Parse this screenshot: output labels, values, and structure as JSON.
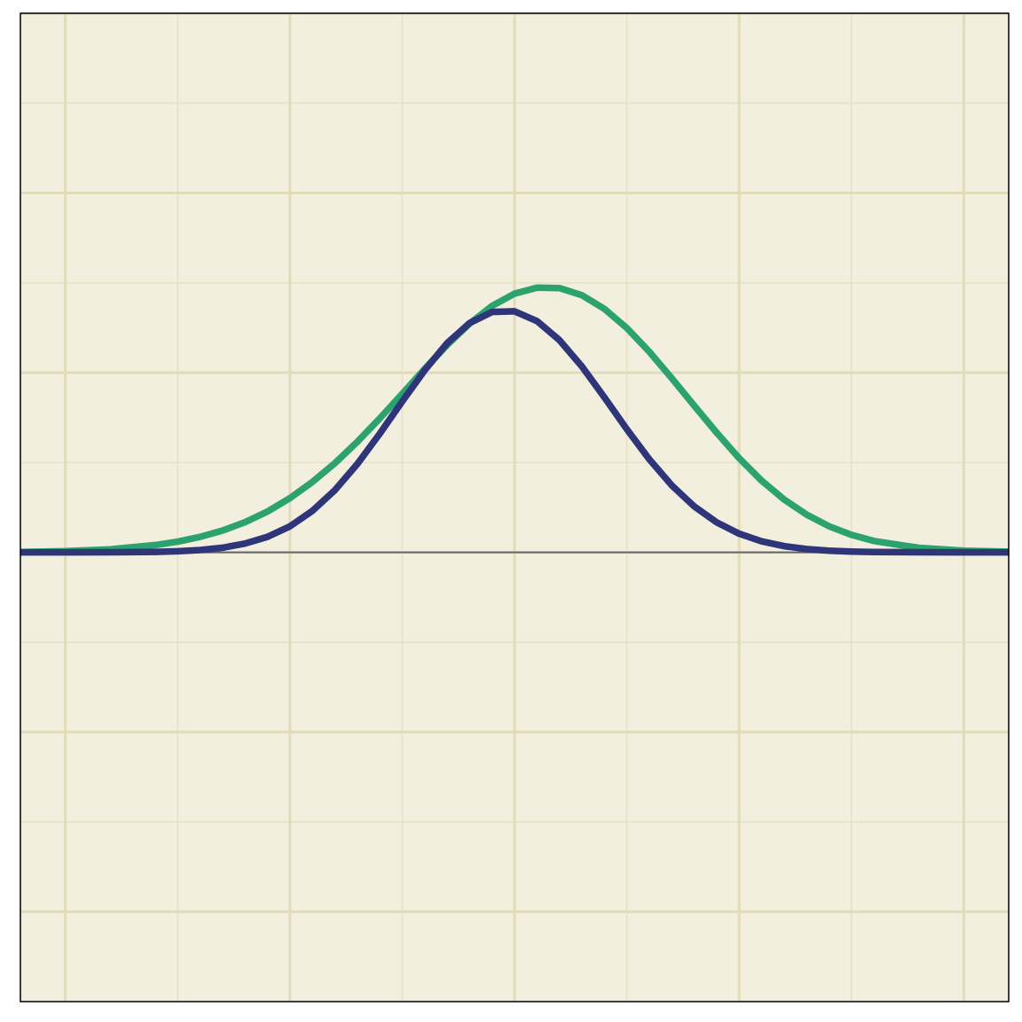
{
  "chart_data": {
    "type": "line",
    "title": "",
    "xlabel": "",
    "ylabel": "",
    "xlim": [
      -4.4,
      4.4
    ],
    "ylim": [
      -0.5,
      0.6
    ],
    "grid": true,
    "legend": "none",
    "x_major_ticks": [
      -4,
      -2,
      0,
      2,
      4
    ],
    "x_minor_ticks": [
      -3,
      -1,
      1,
      3
    ],
    "y_major_ticks": [
      -0.4,
      -0.2,
      0,
      0.2,
      0.4,
      0.6
    ],
    "y_minor_ticks": [
      -0.3,
      -0.1,
      0.1,
      0.3,
      0.5
    ],
    "baseline_y": 0,
    "colors": {
      "plot_background": "#f3efde",
      "grid_major": "#e2dbb9",
      "grid_minor": "#e7e1c6",
      "frame": "#000000",
      "baseline": "#666666"
    },
    "series": [
      {
        "color": "#2ca36f",
        "x": [
          -4.4,
          -4.0,
          -3.6,
          -3.2,
          -3.0,
          -2.8,
          -2.6,
          -2.4,
          -2.2,
          -2.0,
          -1.8,
          -1.6,
          -1.4,
          -1.2,
          -1.0,
          -0.8,
          -0.6,
          -0.4,
          -0.2,
          0.0,
          0.2,
          0.4,
          0.6,
          0.8,
          1.0,
          1.2,
          1.4,
          1.6,
          1.8,
          2.0,
          2.2,
          2.4,
          2.6,
          2.8,
          3.0,
          3.2,
          3.6,
          4.0,
          4.4
        ],
        "y": [
          0.0004,
          0.0013,
          0.0034,
          0.0081,
          0.0119,
          0.0172,
          0.0243,
          0.0336,
          0.0455,
          0.0604,
          0.0783,
          0.0993,
          0.1231,
          0.1491,
          0.1765,
          0.2042,
          0.2308,
          0.2547,
          0.2743,
          0.288,
          0.2947,
          0.2942,
          0.2862,
          0.271,
          0.2497,
          0.2234,
          0.1939,
          0.1633,
          0.1331,
          0.1048,
          0.0798,
          0.0589,
          0.0421,
          0.0291,
          0.0195,
          0.0127,
          0.0051,
          0.0019,
          0.0007
        ]
      },
      {
        "color": "#2e3578",
        "x": [
          -4.4,
          -4.0,
          -3.6,
          -3.2,
          -3.0,
          -2.8,
          -2.6,
          -2.4,
          -2.2,
          -2.0,
          -1.8,
          -1.6,
          -1.4,
          -1.2,
          -1.0,
          -0.8,
          -0.6,
          -0.4,
          -0.2,
          0.0,
          0.2,
          0.4,
          0.6,
          0.8,
          1.0,
          1.2,
          1.4,
          1.6,
          1.8,
          2.0,
          2.2,
          2.4,
          2.6,
          2.8,
          3.0,
          3.2,
          3.6,
          4.0,
          4.4
        ],
        "y": [
          0.0,
          0.0,
          0.0001,
          0.0005,
          0.0012,
          0.0026,
          0.0052,
          0.0098,
          0.0173,
          0.029,
          0.0461,
          0.0693,
          0.0984,
          0.1322,
          0.168,
          0.2027,
          0.2329,
          0.2553,
          0.2676,
          0.2683,
          0.2575,
          0.2362,
          0.2068,
          0.1725,
          0.137,
          0.1036,
          0.0746,
          0.0512,
          0.0334,
          0.0208,
          0.0123,
          0.0069,
          0.0037,
          0.0019,
          0.0009,
          0.0004,
          0.0001,
          0.0,
          0.0
        ]
      }
    ]
  }
}
